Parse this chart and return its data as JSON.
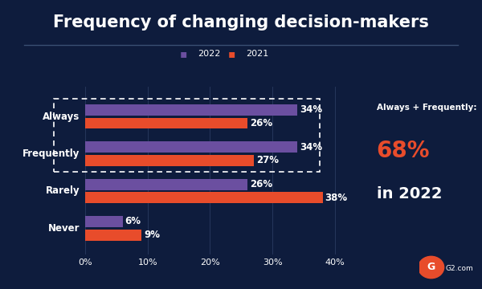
{
  "title": "Frequency of changing decision-makers",
  "background_color": "#0e1c3d",
  "bar_categories": [
    "Always",
    "Frequently",
    "Rarely",
    "Never"
  ],
  "values_2022": [
    34,
    34,
    26,
    6
  ],
  "values_2021": [
    26,
    27,
    38,
    9
  ],
  "color_2022": "#6b4fa0",
  "color_2021": "#e84c2b",
  "text_color": "#ffffff",
  "title_fontsize": 15,
  "label_fontsize": 8.5,
  "tick_fontsize": 8,
  "xlim_data": 45,
  "xticks": [
    0,
    10,
    20,
    30,
    40
  ],
  "xtick_labels": [
    "0%",
    "10%",
    "20%",
    "30%",
    "40%"
  ],
  "annotation_line1": "Always + Frequently:",
  "annotation_highlight": "68%",
  "annotation_line2": "in 2022",
  "highlight_color": "#e84c2b",
  "legend_2022": "2022",
  "legend_2021": "2021",
  "separator_color": "#3a4f72",
  "g2_orange": "#e84c2b"
}
